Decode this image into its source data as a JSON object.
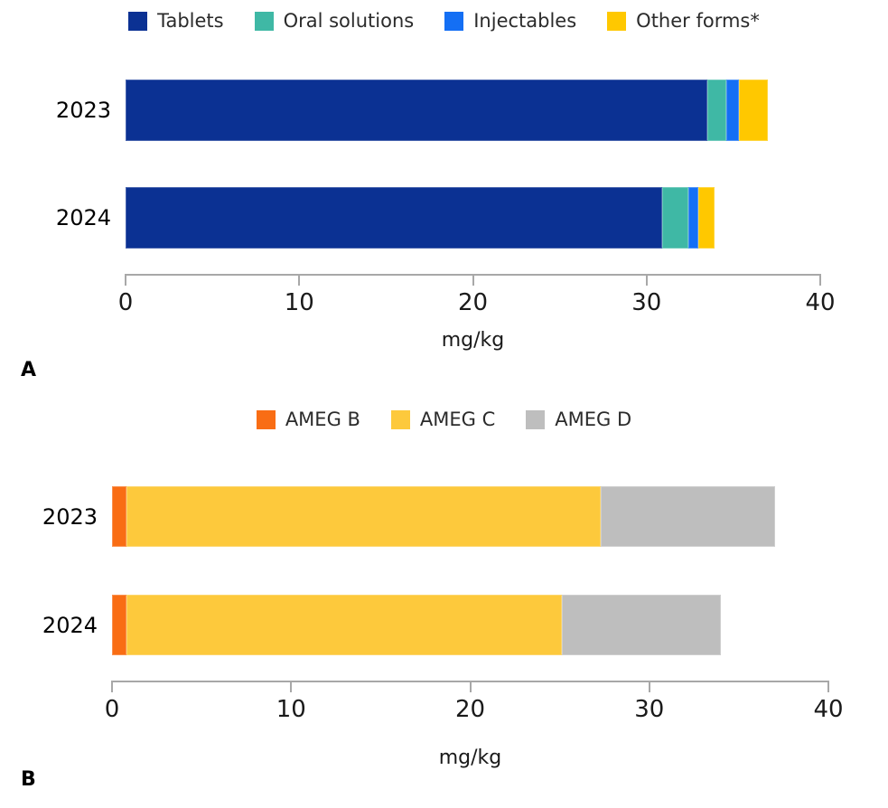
{
  "chart_data": [
    {
      "type": "bar",
      "orientation": "horizontal-stacked",
      "panel_label": "A",
      "categories": [
        "2023",
        "2024"
      ],
      "series": [
        {
          "name": "Tablets",
          "color": "#0B3193",
          "values": [
            33.5,
            30.9
          ]
        },
        {
          "name": "Oral solutions",
          "color": "#3FB8A5",
          "values": [
            1.1,
            1.5
          ]
        },
        {
          "name": "Injectables",
          "color": "#146FF4",
          "values": [
            0.7,
            0.6
          ]
        },
        {
          "name": "Other forms*",
          "color": "#FFC800",
          "values": [
            1.7,
            0.9
          ]
        }
      ],
      "title": "",
      "xlabel": "mg/kg",
      "ylabel": "",
      "xlim": [
        0,
        40
      ],
      "xticks": [
        0,
        10,
        20,
        30,
        40
      ],
      "legend_position": "top-center",
      "grid": false
    },
    {
      "type": "bar",
      "orientation": "horizontal-stacked",
      "panel_label": "B",
      "categories": [
        "2023",
        "2024"
      ],
      "series": [
        {
          "name": "AMEG B",
          "color": "#F96D14",
          "values": [
            0.8,
            0.8
          ]
        },
        {
          "name": "AMEG C",
          "color": "#FDC93C",
          "values": [
            26.5,
            24.3
          ]
        },
        {
          "name": "AMEG D",
          "color": "#BEBEBE",
          "values": [
            9.7,
            8.9
          ]
        }
      ],
      "title": "",
      "xlabel": "mg/kg",
      "ylabel": "",
      "xlim": [
        0,
        40
      ],
      "xticks": [
        0,
        10,
        20,
        30,
        40
      ],
      "legend_position": "top-center",
      "grid": false
    }
  ],
  "style": {
    "axis_color": "#a8a8a8",
    "tick_text_color": "#1a1a1a",
    "background": "#ffffff"
  }
}
